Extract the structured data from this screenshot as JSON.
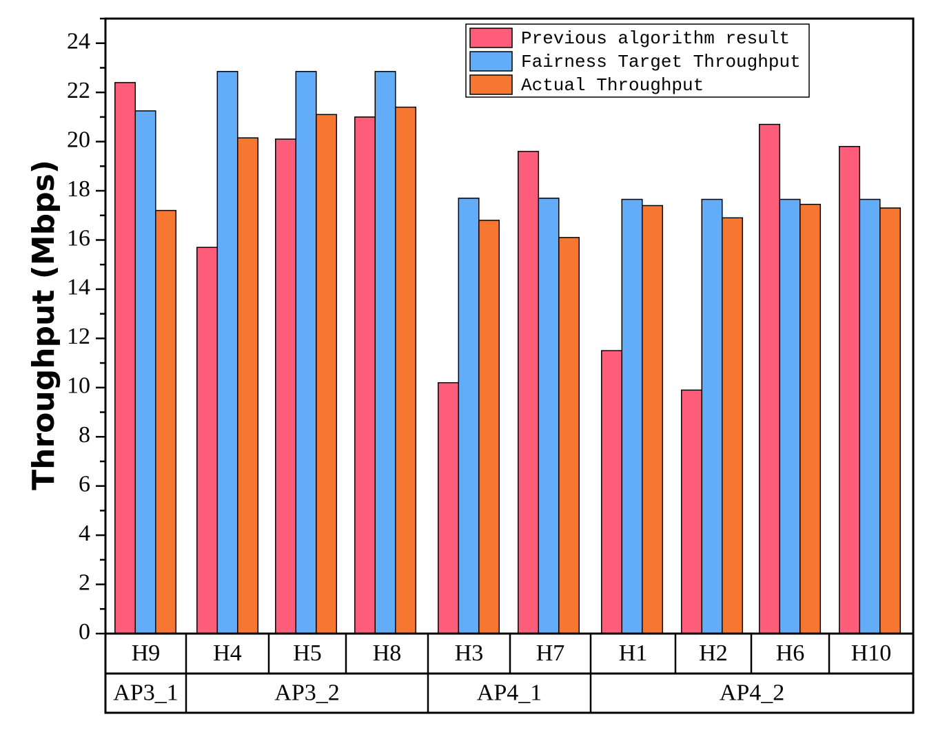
{
  "chart_data": {
    "type": "bar",
    "title": "",
    "xlabel": "",
    "ylabel": "Throughput (Mbps)",
    "ylim": [
      0,
      25
    ],
    "yticks": [
      0,
      2,
      4,
      6,
      8,
      10,
      12,
      14,
      16,
      18,
      20,
      22,
      24
    ],
    "categories": [
      "H9",
      "H4",
      "H5",
      "H8",
      "H3",
      "H7",
      "H1",
      "H2",
      "H6",
      "H10"
    ],
    "groups": [
      {
        "label": "AP3_1",
        "span": 1
      },
      {
        "label": "AP3_2",
        "span": 3
      },
      {
        "label": "AP4_1",
        "span": 2
      },
      {
        "label": "AP4_2",
        "span": 4
      }
    ],
    "series": [
      {
        "name": "Previous algorithm result",
        "color": "#FF5E7A",
        "values": [
          22.4,
          15.7,
          20.1,
          21.0,
          10.2,
          19.6,
          11.5,
          9.9,
          20.7,
          19.8
        ]
      },
      {
        "name": "Fairness Target Throughput",
        "color": "#63ADF8",
        "values": [
          21.25,
          22.85,
          22.85,
          22.85,
          17.7,
          17.7,
          17.65,
          17.65,
          17.65,
          17.65
        ]
      },
      {
        "name": "Actual Throughput",
        "color": "#F77732",
        "values": [
          17.2,
          20.15,
          21.1,
          21.4,
          16.8,
          16.1,
          17.4,
          16.9,
          17.45,
          17.3
        ]
      }
    ],
    "legend_position": "top-right"
  }
}
